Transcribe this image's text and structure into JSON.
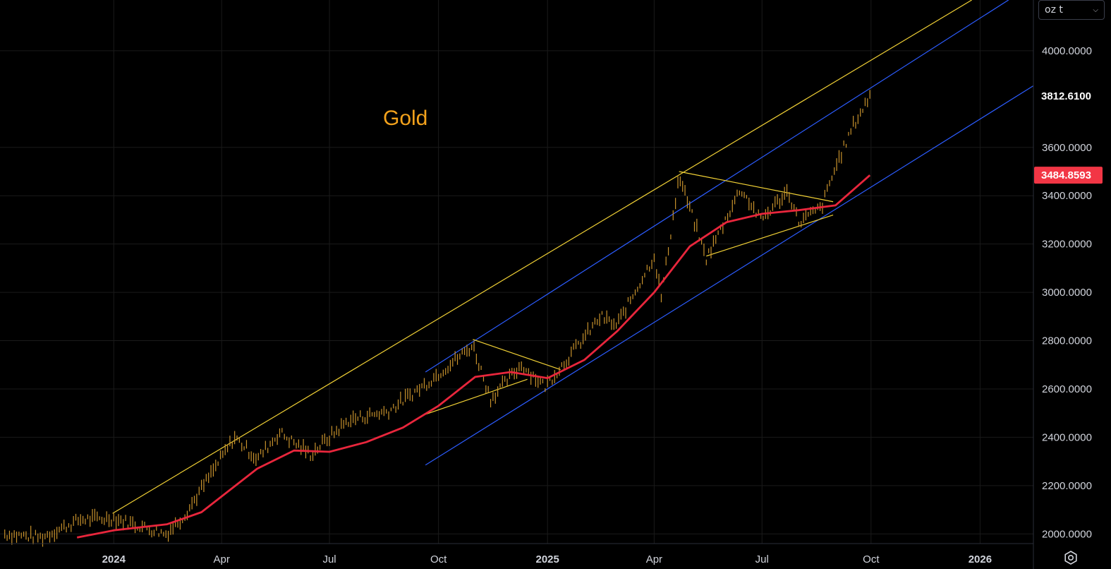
{
  "toolbar": {
    "unit_label": "oz t",
    "unit_icon": "chevron-down-icon",
    "settings_icon": "settings-icon"
  },
  "colors": {
    "background": "#000000",
    "grid": "#1a1a1a",
    "candle": "#c8922c",
    "ema": "#e8263c",
    "channel_yellow": "#f0d035",
    "channel_blue": "#2c5cff",
    "axis_text": "#d1d4dc",
    "title": "#f3a21c",
    "price_tag": "#f23645"
  },
  "chart_data": {
    "type": "candlestick",
    "title": "Gold",
    "y_axis_labels": [
      "4000.0000",
      "3600.0000",
      "3400.0000",
      "3200.0000",
      "3000.0000",
      "2800.0000",
      "2600.0000",
      "2400.0000",
      "2200.0000",
      "2000.0000"
    ],
    "highlighted_labels": [
      {
        "text": "3812.6100",
        "value": 3812.61,
        "style": "dark"
      },
      {
        "text": "3484.8593",
        "value": 3484.8593,
        "style": "red"
      }
    ],
    "x_axis_labels": [
      {
        "text": "2024",
        "date": "2024-01-01",
        "bold": true
      },
      {
        "text": "Apr",
        "date": "2024-04-01",
        "bold": false
      },
      {
        "text": "Jul",
        "date": "2024-07-01",
        "bold": false
      },
      {
        "text": "Oct",
        "date": "2024-10-01",
        "bold": false
      },
      {
        "text": "2025",
        "date": "2025-01-01",
        "bold": true
      },
      {
        "text": "Apr",
        "date": "2025-04-01",
        "bold": false
      },
      {
        "text": "Jul",
        "date": "2025-07-01",
        "bold": false
      },
      {
        "text": "Oct",
        "date": "2025-10-01",
        "bold": false
      },
      {
        "text": "2026",
        "date": "2026-01-01",
        "bold": true
      }
    ],
    "x_range": [
      "2023-09-27",
      "2026-02-15"
    ],
    "y_range": [
      1960,
      4210
    ],
    "price_path": [
      {
        "date": "2023-10-01",
        "value": 2000
      },
      {
        "date": "2023-11-01",
        "value": 1985
      },
      {
        "date": "2023-12-04",
        "value": 2060
      },
      {
        "date": "2024-01-01",
        "value": 2065
      },
      {
        "date": "2024-02-14",
        "value": 2000
      },
      {
        "date": "2024-03-01",
        "value": 2080
      },
      {
        "date": "2024-04-12",
        "value": 2400
      },
      {
        "date": "2024-05-01",
        "value": 2310
      },
      {
        "date": "2024-05-20",
        "value": 2420
      },
      {
        "date": "2024-06-15",
        "value": 2330
      },
      {
        "date": "2024-07-17",
        "value": 2470
      },
      {
        "date": "2024-08-20",
        "value": 2510
      },
      {
        "date": "2024-09-20",
        "value": 2620
      },
      {
        "date": "2024-10-30",
        "value": 2780
      },
      {
        "date": "2024-11-14",
        "value": 2560
      },
      {
        "date": "2024-12-10",
        "value": 2700
      },
      {
        "date": "2024-12-30",
        "value": 2610
      },
      {
        "date": "2025-02-15",
        "value": 2900
      },
      {
        "date": "2025-02-28",
        "value": 2860
      },
      {
        "date": "2025-04-01",
        "value": 3150
      },
      {
        "date": "2025-04-07",
        "value": 2980
      },
      {
        "date": "2025-04-22",
        "value": 3480
      },
      {
        "date": "2025-05-15",
        "value": 3140
      },
      {
        "date": "2025-06-13",
        "value": 3430
      },
      {
        "date": "2025-06-30",
        "value": 3300
      },
      {
        "date": "2025-07-23",
        "value": 3420
      },
      {
        "date": "2025-08-01",
        "value": 3290
      },
      {
        "date": "2025-08-20",
        "value": 3350
      },
      {
        "date": "2025-09-02",
        "value": 3530
      },
      {
        "date": "2025-09-16",
        "value": 3690
      },
      {
        "date": "2025-09-30",
        "value": 3812.61
      }
    ],
    "ema_path": [
      {
        "date": "2023-12-01",
        "value": 1985
      },
      {
        "date": "2024-01-01",
        "value": 2015
      },
      {
        "date": "2024-02-15",
        "value": 2040
      },
      {
        "date": "2024-03-15",
        "value": 2090
      },
      {
        "date": "2024-05-01",
        "value": 2270
      },
      {
        "date": "2024-06-01",
        "value": 2345
      },
      {
        "date": "2024-07-01",
        "value": 2340
      },
      {
        "date": "2024-08-01",
        "value": 2380
      },
      {
        "date": "2024-09-01",
        "value": 2440
      },
      {
        "date": "2024-10-01",
        "value": 2530
      },
      {
        "date": "2024-11-01",
        "value": 2650
      },
      {
        "date": "2024-12-01",
        "value": 2670
      },
      {
        "date": "2025-01-01",
        "value": 2645
      },
      {
        "date": "2025-02-01",
        "value": 2720
      },
      {
        "date": "2025-03-01",
        "value": 2840
      },
      {
        "date": "2025-04-01",
        "value": 3000
      },
      {
        "date": "2025-05-01",
        "value": 3190
      },
      {
        "date": "2025-06-01",
        "value": 3290
      },
      {
        "date": "2025-07-01",
        "value": 3325
      },
      {
        "date": "2025-08-01",
        "value": 3340
      },
      {
        "date": "2025-09-01",
        "value": 3360
      },
      {
        "date": "2025-09-30",
        "value": 3484.86
      }
    ],
    "trendlines": [
      {
        "color": "yellow",
        "from": {
          "date": "2023-12-31",
          "value": 2085
        },
        "to": {
          "date": "2025-12-25",
          "value": 4210
        }
      },
      {
        "color": "blue",
        "from": {
          "date": "2024-09-20",
          "value": 2670
        },
        "to": {
          "date": "2026-01-25",
          "value": 4210
        }
      },
      {
        "color": "blue",
        "from": {
          "date": "2024-09-20",
          "value": 2285
        },
        "to": {
          "date": "2026-02-15",
          "value": 3855
        }
      },
      {
        "color": "yellow",
        "from": {
          "date": "2024-09-17",
          "value": 2490
        },
        "to": {
          "date": "2024-12-15",
          "value": 2640
        }
      },
      {
        "color": "yellow",
        "from": {
          "date": "2024-10-30",
          "value": 2805
        },
        "to": {
          "date": "2025-01-12",
          "value": 2680
        }
      },
      {
        "color": "yellow",
        "from": {
          "date": "2025-04-22",
          "value": 3500
        },
        "to": {
          "date": "2025-08-30",
          "value": 3375
        }
      },
      {
        "color": "yellow",
        "from": {
          "date": "2025-05-15",
          "value": 3150
        },
        "to": {
          "date": "2025-08-30",
          "value": 3320
        }
      }
    ]
  }
}
